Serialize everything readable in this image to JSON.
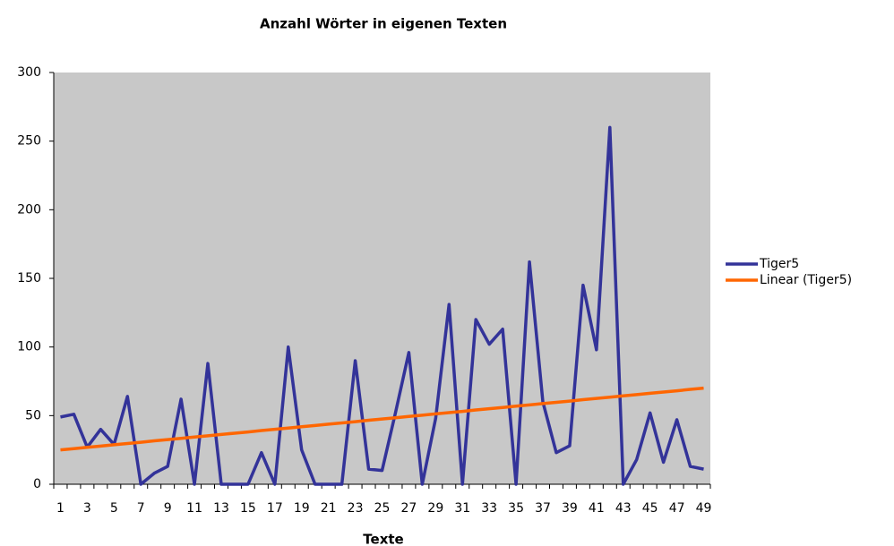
{
  "chart_data": {
    "type": "line",
    "title": "Anzahl Wörter in eigenen Texten",
    "x_label": "Texte",
    "categories": [
      "1",
      null,
      "3",
      null,
      "5",
      null,
      "7",
      null,
      "9",
      null,
      "11",
      null,
      "13",
      null,
      "15",
      null,
      "17",
      null,
      "19",
      null,
      "21",
      null,
      "23",
      null,
      "25",
      null,
      "27",
      null,
      "29",
      null,
      "31",
      null,
      "33",
      null,
      "35",
      null,
      "37",
      null,
      "39",
      null,
      "41",
      null,
      "43",
      null,
      "45",
      null,
      "47",
      null,
      "49"
    ],
    "series": [
      {
        "name": "Tiger5",
        "color": "#333399",
        "values": [
          49,
          51,
          27,
          40,
          29,
          64,
          0,
          8,
          13,
          62,
          0,
          88,
          0,
          0,
          0,
          23,
          0,
          100,
          25,
          0,
          0,
          0,
          90,
          11,
          10,
          52,
          96,
          0,
          48,
          131,
          0,
          120,
          102,
          113,
          0,
          162,
          60,
          23,
          28,
          145,
          98,
          260,
          0,
          18,
          52,
          16,
          47,
          13,
          11
        ]
      },
      {
        "name": "Linear (Tiger5)",
        "color": "#ff6600",
        "values": [
          25,
          25.9,
          26.9,
          27.8,
          28.8,
          29.7,
          30.6,
          31.6,
          32.5,
          33.4,
          34.4,
          35.3,
          36.3,
          37.2,
          38.1,
          39.1,
          40,
          40.9,
          41.9,
          42.8,
          43.8,
          44.7,
          45.6,
          46.6,
          47.5,
          48.4,
          49.4,
          50.3,
          51.3,
          52.2,
          53.1,
          54.1,
          55,
          55.9,
          56.9,
          57.8,
          58.8,
          59.7,
          60.6,
          61.6,
          62.5,
          63.4,
          64.4,
          65.3,
          66.3,
          67.2,
          68.1,
          69.1,
          70
        ]
      }
    ],
    "ylim": [
      0,
      300
    ],
    "yticks": [
      0,
      50,
      100,
      150,
      200,
      250,
      300
    ],
    "grid": false,
    "legend": "right",
    "plot_background": "#c8c8c8"
  }
}
